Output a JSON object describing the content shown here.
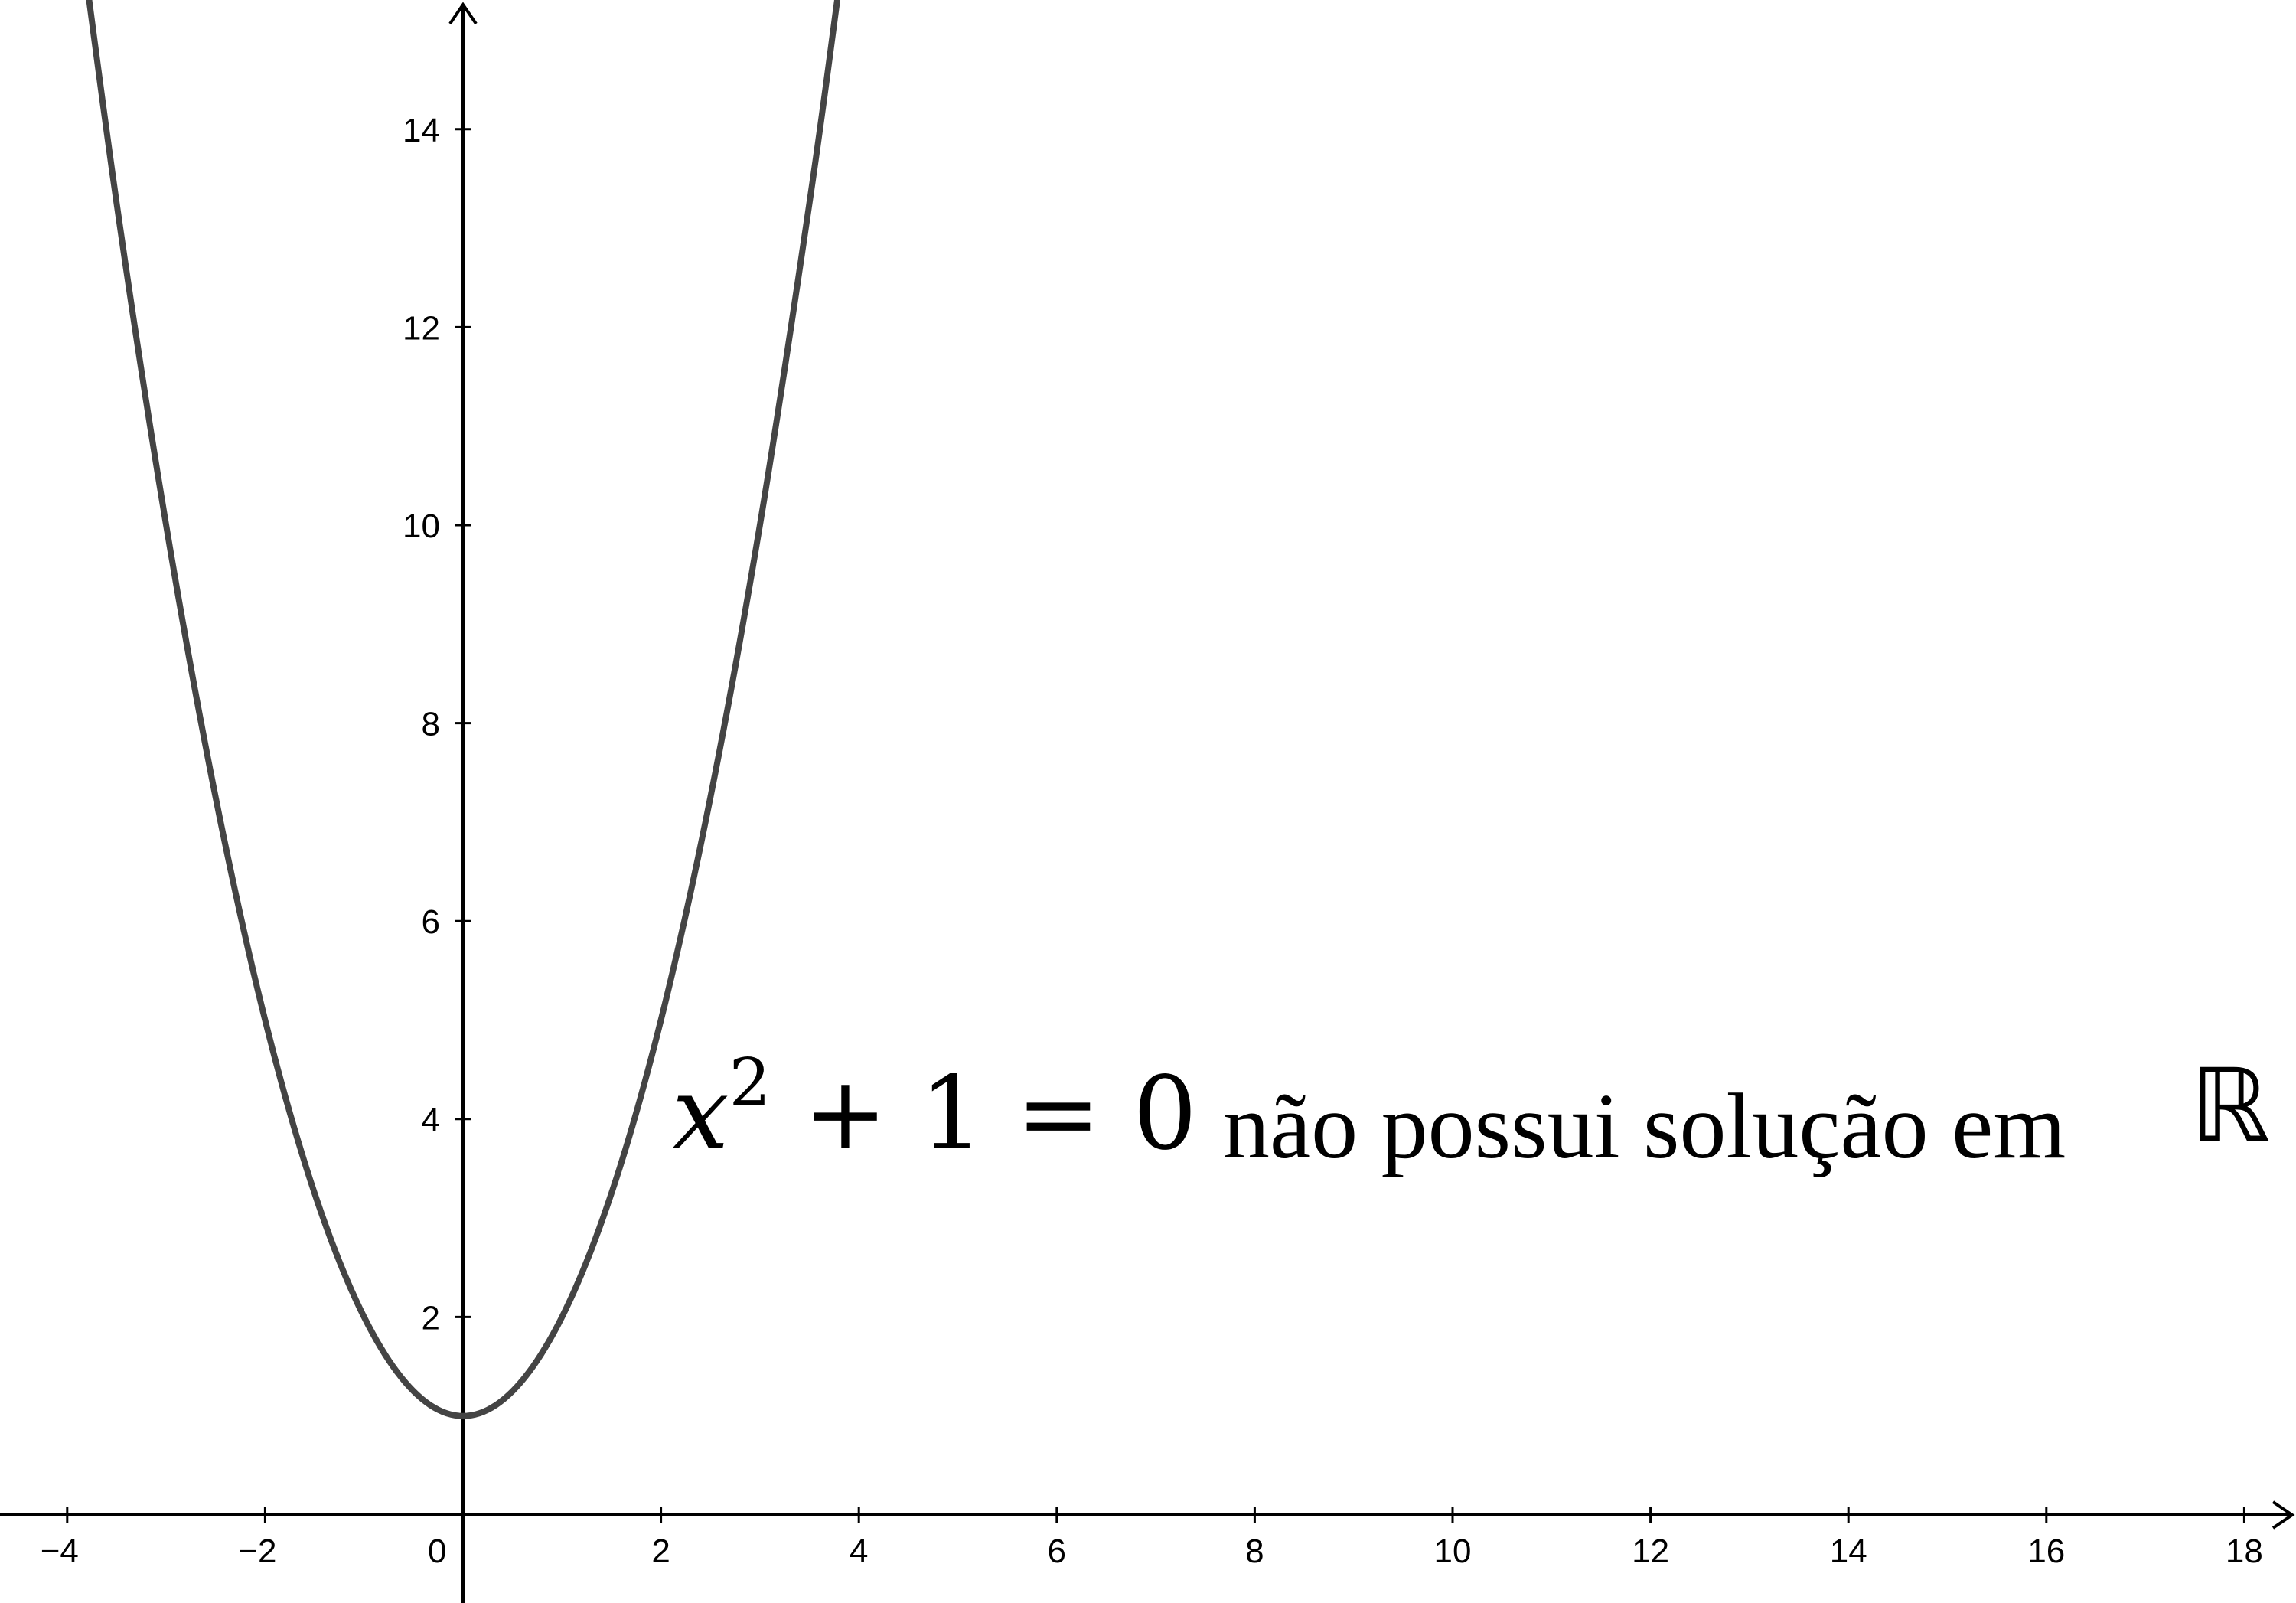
{
  "chart_data": {
    "type": "line",
    "title": "",
    "xlabel": "",
    "ylabel": "",
    "xlim": [
      -4.7,
      18.6
    ],
    "ylim": [
      -0.9,
      15.3
    ],
    "grid": false,
    "x_ticks": [
      -4,
      -2,
      0,
      2,
      4,
      6,
      8,
      10,
      12,
      14,
      16,
      18
    ],
    "x_tick_labels": [
      "−4",
      "−2",
      "0",
      "2",
      "4",
      "6",
      "8",
      "10",
      "12",
      "14",
      "16",
      "18"
    ],
    "y_ticks": [
      2,
      4,
      6,
      8,
      10,
      12,
      14
    ],
    "y_tick_labels": [
      "2",
      "4",
      "6",
      "8",
      "10",
      "12",
      "14"
    ],
    "series": [
      {
        "function": "y = x^2 + 1",
        "color": "#444444",
        "x": [
          -4,
          -3.5,
          -3,
          -2.5,
          -2,
          -1.5,
          -1,
          -0.5,
          0,
          0.5,
          1,
          1.5,
          2,
          2.5,
          3,
          3.5,
          3.8
        ],
        "y": [
          17,
          13.25,
          10,
          7.25,
          5,
          3.25,
          2,
          1.25,
          1,
          1.25,
          2,
          3.25,
          5,
          7.25,
          10,
          13.25,
          15.44
        ]
      }
    ],
    "annotation": {
      "math_base": "x",
      "math_exp": "2",
      "math_rest": " + 1 = 0",
      "text": "não possui solução em",
      "symbol": "ℝ"
    }
  }
}
